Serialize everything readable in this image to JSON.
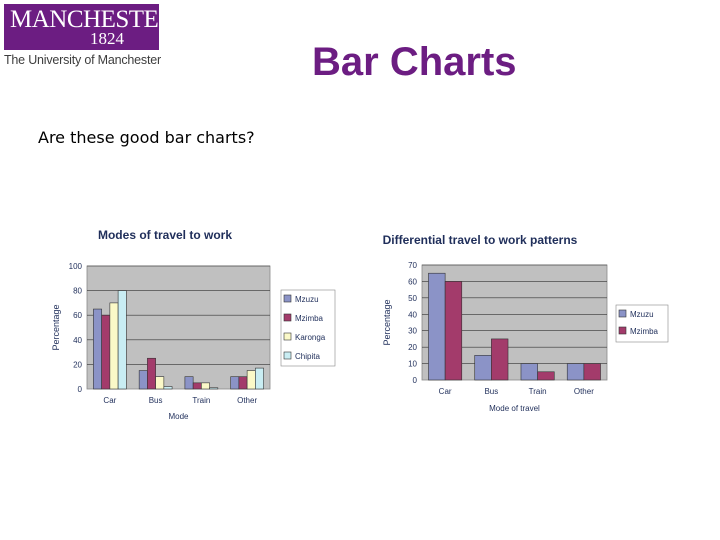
{
  "logo": {
    "name": "MANCHESTER",
    "year": "1824",
    "tagline": "The University of Manchester",
    "color": "#6c1d82"
  },
  "slide": {
    "title": "Bar Charts",
    "question": "Are these good bar charts?"
  },
  "chart_data": [
    {
      "type": "bar",
      "title": "Modes of travel to work",
      "xlabel": "Mode",
      "ylabel": "Percentage",
      "categories": [
        "Car",
        "Bus",
        "Train",
        "Other"
      ],
      "ylim": [
        0,
        100
      ],
      "yticks": [
        0,
        20,
        40,
        60,
        80,
        100
      ],
      "grid": true,
      "legend_position": "right",
      "series": [
        {
          "name": "Mzuzu",
          "values": [
            65,
            15,
            10,
            10
          ],
          "color": "#8b93c7"
        },
        {
          "name": "Mzimba",
          "values": [
            60,
            25,
            5,
            10
          ],
          "color": "#a33b6b"
        },
        {
          "name": "Karonga",
          "values": [
            70,
            10,
            5,
            15
          ],
          "color": "#fbf9c8"
        },
        {
          "name": "Chipita",
          "values": [
            80,
            2,
            1,
            17
          ],
          "color": "#c9edf3"
        }
      ]
    },
    {
      "type": "bar",
      "title": "Differential travel to work patterns",
      "xlabel": "Mode of travel",
      "ylabel": "Percentage",
      "categories": [
        "Car",
        "Bus",
        "Train",
        "Other"
      ],
      "ylim": [
        0,
        70
      ],
      "yticks": [
        0,
        10,
        20,
        30,
        40,
        50,
        60,
        70
      ],
      "grid": true,
      "legend_position": "right",
      "series": [
        {
          "name": "Mzuzu",
          "values": [
            65,
            15,
            10,
            10
          ],
          "color": "#8b93c7"
        },
        {
          "name": "Mzimba",
          "values": [
            60,
            25,
            5,
            10
          ],
          "color": "#a33b6b"
        }
      ]
    }
  ]
}
